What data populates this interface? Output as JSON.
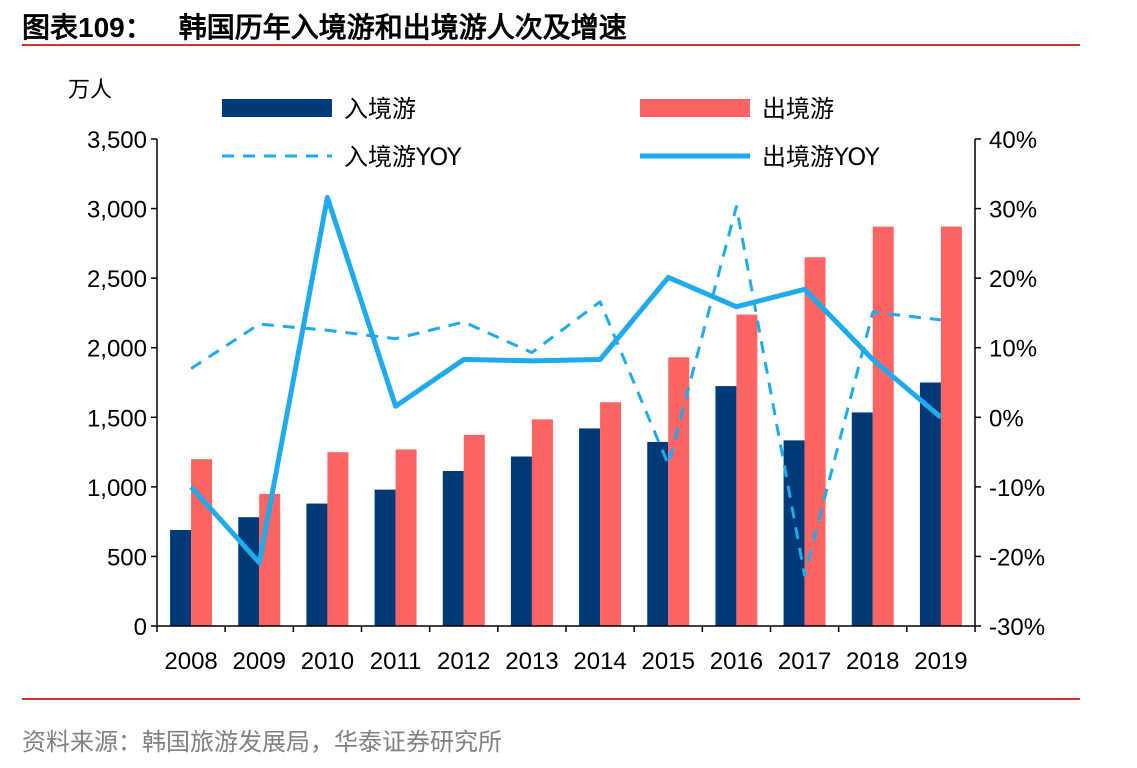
{
  "title": {
    "prefix": "图表",
    "number": "109",
    "colon": "：",
    "text": "韩国历年入境游和出境游人次及增速"
  },
  "source": "资料来源：韩国旅游发展局，华泰证券研究所",
  "colors": {
    "accent_rule": "#d0312d",
    "inbound": "#003a78",
    "outbound": "#ff6464",
    "yoy": "#1eaaeb"
  },
  "chart_data": {
    "type": "bar",
    "categories": [
      "2008",
      "2009",
      "2010",
      "2011",
      "2012",
      "2013",
      "2014",
      "2015",
      "2016",
      "2017",
      "2018",
      "2019"
    ],
    "y_left": {
      "unit_label": "万人",
      "lim": [
        0,
        3500
      ],
      "ticks": [
        "0",
        "500",
        "1,000",
        "1,500",
        "2,000",
        "2,500",
        "3,000",
        "3,500"
      ]
    },
    "y_right": {
      "lim": [
        -30,
        40
      ],
      "ticks": [
        "-30%",
        "-20%",
        "-10%",
        "0%",
        "10%",
        "20%",
        "30%",
        "40%"
      ]
    },
    "series": [
      {
        "name": "入境游",
        "kind": "bar",
        "axis": "left",
        "values": [
          690,
          782,
          880,
          980,
          1114,
          1218,
          1420,
          1323,
          1724,
          1334,
          1535,
          1750
        ]
      },
      {
        "name": "出境游",
        "kind": "bar",
        "axis": "left",
        "values": [
          1199,
          949,
          1249,
          1269,
          1374,
          1485,
          1608,
          1931,
          2238,
          2650,
          2870,
          2871
        ]
      },
      {
        "name": "入境游YOY",
        "kind": "line",
        "style": "dashed",
        "axis": "right",
        "values": [
          7,
          13.4,
          12.5,
          11.3,
          13.7,
          9.3,
          16.6,
          -6.8,
          30.3,
          -22.7,
          15.1,
          14
        ]
      },
      {
        "name": "出境游YOY",
        "kind": "line",
        "style": "solid",
        "axis": "right",
        "values": [
          -10,
          -20.9,
          31.6,
          1.6,
          8.3,
          8.1,
          8.3,
          20.1,
          15.9,
          18.4,
          8.3,
          0
        ]
      }
    ],
    "grid": false,
    "legend": "top"
  }
}
